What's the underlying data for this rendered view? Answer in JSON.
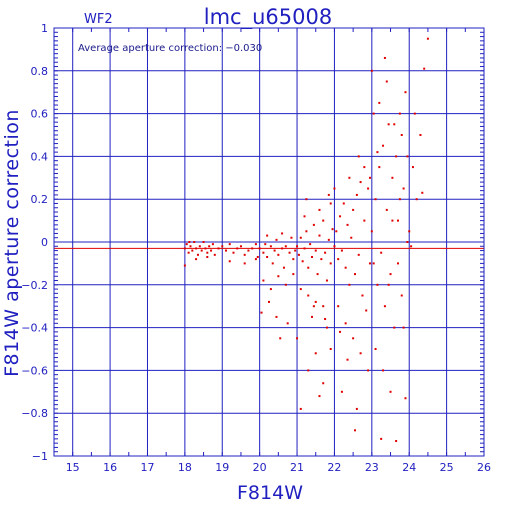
{
  "chart_data": {
    "type": "scatter",
    "title": "lmc_u65008",
    "panel_label": "WF2",
    "annotation": "Average aperture correction: −0.030",
    "xlabel": "F814W",
    "ylabel": "F814W aperture correction",
    "xlim": [
      14.5,
      26
    ],
    "ylim": [
      -1,
      1
    ],
    "x_ticks": [
      15,
      16,
      17,
      18,
      19,
      20,
      21,
      22,
      23,
      24,
      25,
      26
    ],
    "x_tick_labels": [
      "15",
      "16",
      "17",
      "18",
      "19",
      "20",
      "21",
      "22",
      "23",
      "24",
      "25",
      "26"
    ],
    "y_ticks": [
      -1,
      -0.8,
      -0.6,
      -0.4,
      -0.2,
      0,
      0.2,
      0.4,
      0.6,
      0.8,
      1
    ],
    "y_tick_labels": [
      "−1",
      "−0.8",
      "−0.6",
      "−0.4",
      "−0.2",
      "0",
      "0.2",
      "0.4",
      "0.6",
      "0.8",
      "1"
    ],
    "grid": true,
    "mean_line_y": -0.03,
    "zero_line_y": 0,
    "colors": {
      "axis": "#2020c0",
      "points": "#e00000",
      "mean_line": "#e00000"
    },
    "series": [
      {
        "points": [
          [
            18.0,
            -0.03
          ],
          [
            18.05,
            -0.01
          ],
          [
            18.1,
            -0.05
          ],
          [
            18.12,
            0.0
          ],
          [
            18.15,
            -0.02
          ],
          [
            18.2,
            -0.04
          ],
          [
            18.25,
            0.0
          ],
          [
            18.3,
            -0.03
          ],
          [
            18.35,
            -0.06
          ],
          [
            18.4,
            -0.02
          ],
          [
            18.45,
            -0.04
          ],
          [
            18.5,
            0.0
          ],
          [
            18.55,
            -0.03
          ],
          [
            18.6,
            -0.05
          ],
          [
            18.65,
            -0.02
          ],
          [
            18.7,
            -0.04
          ],
          [
            18.75,
            -0.01
          ],
          [
            18.8,
            -0.06
          ],
          [
            18.9,
            -0.03
          ],
          [
            19.0,
            -0.02
          ],
          [
            19.1,
            -0.04
          ],
          [
            19.2,
            -0.01
          ],
          [
            19.3,
            -0.05
          ],
          [
            19.4,
            -0.03
          ],
          [
            19.5,
            -0.02
          ],
          [
            19.6,
            -0.06
          ],
          [
            19.7,
            -0.04
          ],
          [
            19.8,
            -0.03
          ],
          [
            19.9,
            -0.01
          ],
          [
            19.95,
            -0.07
          ],
          [
            18.0,
            -0.11
          ],
          [
            18.3,
            -0.08
          ],
          [
            18.6,
            -0.07
          ],
          [
            19.2,
            -0.09
          ],
          [
            19.6,
            -0.1
          ],
          [
            19.9,
            -0.08
          ],
          [
            20.0,
            -0.03
          ],
          [
            20.1,
            -0.05
          ],
          [
            20.15,
            -0.01
          ],
          [
            20.2,
            -0.07
          ],
          [
            20.3,
            -0.02
          ],
          [
            20.35,
            -0.1
          ],
          [
            20.4,
            -0.04
          ],
          [
            20.45,
            0.01
          ],
          [
            20.5,
            -0.06
          ],
          [
            20.6,
            -0.03
          ],
          [
            20.65,
            -0.12
          ],
          [
            20.7,
            -0.02
          ],
          [
            20.8,
            -0.05
          ],
          [
            20.85,
            0.02
          ],
          [
            20.9,
            -0.08
          ],
          [
            20.95,
            -0.04
          ],
          [
            20.1,
            -0.18
          ],
          [
            20.3,
            -0.22
          ],
          [
            20.5,
            -0.16
          ],
          [
            20.7,
            -0.2
          ],
          [
            20.2,
            0.03
          ],
          [
            20.6,
            0.04
          ],
          [
            20.05,
            -0.33
          ],
          [
            20.25,
            -0.28
          ],
          [
            20.45,
            -0.35
          ],
          [
            20.75,
            -0.38
          ],
          [
            20.9,
            -0.15
          ],
          [
            20.55,
            -0.45
          ],
          [
            21.0,
            -0.02
          ],
          [
            21.05,
            -0.06
          ],
          [
            21.1,
            0.02
          ],
          [
            21.15,
            -0.09
          ],
          [
            21.2,
            -0.03
          ],
          [
            21.25,
            0.05
          ],
          [
            21.3,
            -0.12
          ],
          [
            21.35,
            -0.01
          ],
          [
            21.4,
            -0.07
          ],
          [
            21.45,
            0.08
          ],
          [
            21.5,
            -0.04
          ],
          [
            21.55,
            -0.15
          ],
          [
            21.6,
            0.03
          ],
          [
            21.65,
            -0.08
          ],
          [
            21.7,
            0.1
          ],
          [
            21.75,
            -0.05
          ],
          [
            21.8,
            -0.18
          ],
          [
            21.85,
            0.01
          ],
          [
            21.9,
            -0.1
          ],
          [
            21.95,
            0.06
          ],
          [
            21.1,
            -0.22
          ],
          [
            21.3,
            -0.25
          ],
          [
            21.5,
            -0.28
          ],
          [
            21.7,
            -0.3
          ],
          [
            21.2,
            0.12
          ],
          [
            21.6,
            0.15
          ],
          [
            21.9,
            0.18
          ],
          [
            21.4,
            -0.35
          ],
          [
            21.8,
            -0.4
          ],
          [
            21.0,
            -0.45
          ],
          [
            21.5,
            -0.52
          ],
          [
            21.3,
            -0.6
          ],
          [
            21.7,
            -0.66
          ],
          [
            21.1,
            -0.78
          ],
          [
            21.6,
            -0.72
          ],
          [
            21.9,
            -0.5
          ],
          [
            21.25,
            0.2
          ],
          [
            21.85,
            0.22
          ],
          [
            21.45,
            -0.3
          ],
          [
            21.75,
            -0.36
          ],
          [
            22.0,
            -0.02
          ],
          [
            22.05,
            0.05
          ],
          [
            22.1,
            -0.08
          ],
          [
            22.15,
            0.12
          ],
          [
            22.2,
            -0.04
          ],
          [
            22.25,
            0.18
          ],
          [
            22.3,
            -0.12
          ],
          [
            22.35,
            0.08
          ],
          [
            22.4,
            -0.2
          ],
          [
            22.45,
            0.02
          ],
          [
            22.5,
            0.15
          ],
          [
            22.55,
            -0.15
          ],
          [
            22.6,
            0.22
          ],
          [
            22.65,
            -0.06
          ],
          [
            22.7,
            0.28
          ],
          [
            22.75,
            -0.25
          ],
          [
            22.8,
            0.1
          ],
          [
            22.85,
            -0.32
          ],
          [
            22.9,
            0.25
          ],
          [
            22.95,
            -0.1
          ],
          [
            22.1,
            -0.3
          ],
          [
            22.3,
            -0.38
          ],
          [
            22.5,
            -0.45
          ],
          [
            22.7,
            -0.52
          ],
          [
            22.9,
            -0.6
          ],
          [
            22.2,
            -0.7
          ],
          [
            22.6,
            -0.78
          ],
          [
            22.4,
            0.3
          ],
          [
            22.8,
            0.35
          ],
          [
            22.55,
            -0.88
          ],
          [
            22.0,
            0.25
          ],
          [
            22.35,
            -0.55
          ],
          [
            22.65,
            0.4
          ],
          [
            22.95,
            0.3
          ],
          [
            22.15,
            -0.42
          ],
          [
            23.0,
            0.05
          ],
          [
            23.05,
            -0.1
          ],
          [
            23.1,
            0.2
          ],
          [
            23.15,
            -0.2
          ],
          [
            23.2,
            0.35
          ],
          [
            23.25,
            -0.05
          ],
          [
            23.3,
            0.45
          ],
          [
            23.35,
            -0.3
          ],
          [
            23.4,
            0.15
          ],
          [
            23.45,
            0.55
          ],
          [
            23.5,
            -0.15
          ],
          [
            23.55,
            0.3
          ],
          [
            23.6,
            -0.4
          ],
          [
            23.65,
            0.4
          ],
          [
            23.7,
            0.1
          ],
          [
            23.75,
            0.6
          ],
          [
            23.8,
            -0.25
          ],
          [
            23.85,
            0.25
          ],
          [
            23.9,
            0.7
          ],
          [
            23.95,
            0.0
          ],
          [
            23.1,
            -0.5
          ],
          [
            23.3,
            -0.6
          ],
          [
            23.5,
            -0.7
          ],
          [
            23.2,
            0.65
          ],
          [
            23.4,
            0.75
          ],
          [
            23.0,
            0.8
          ],
          [
            23.6,
            0.55
          ],
          [
            23.8,
            0.5
          ],
          [
            23.25,
            -0.92
          ],
          [
            23.65,
            -0.93
          ],
          [
            23.9,
            -0.73
          ],
          [
            23.35,
            0.86
          ],
          [
            23.95,
            0.4
          ],
          [
            23.75,
            0.2
          ],
          [
            23.85,
            -0.4
          ],
          [
            23.15,
            0.42
          ],
          [
            23.55,
            0.1
          ],
          [
            23.45,
            -0.2
          ],
          [
            23.05,
            0.6
          ],
          [
            23.7,
            -0.1
          ],
          [
            24.0,
            0.05
          ],
          [
            24.1,
            0.35
          ],
          [
            24.2,
            0.2
          ],
          [
            24.3,
            0.5
          ],
          [
            24.35,
            0.23
          ],
          [
            24.4,
            0.81
          ],
          [
            24.5,
            0.95
          ],
          [
            24.05,
            -0.02
          ],
          [
            24.15,
            0.6
          ]
        ]
      }
    ]
  }
}
